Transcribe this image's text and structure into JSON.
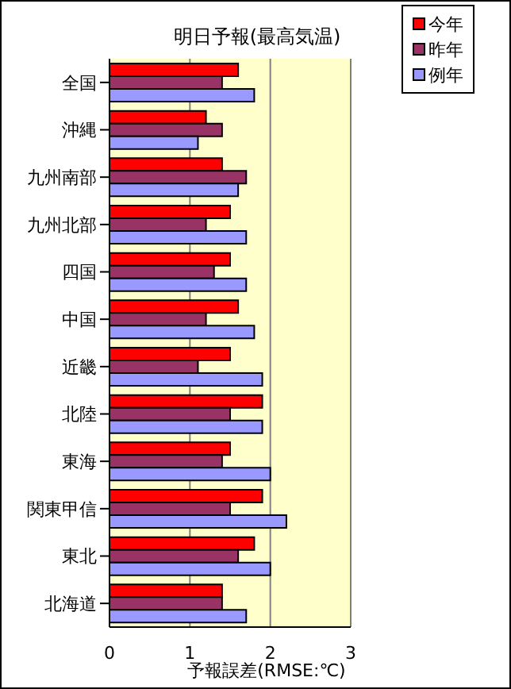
{
  "chart_data": {
    "type": "bar",
    "orientation": "horizontal",
    "title": "明日予報(最高気温)",
    "xlabel": "予報誤差(RMSE:℃)",
    "categories": [
      "全国",
      "沖縄",
      "九州南部",
      "九州北部",
      "四国",
      "中国",
      "近畿",
      "北陸",
      "東海",
      "関東甲信",
      "東北",
      "北海道"
    ],
    "series": [
      {
        "name": "今年",
        "color": "#ff0000",
        "values": [
          1.6,
          1.2,
          1.4,
          1.5,
          1.5,
          1.6,
          1.5,
          1.9,
          1.5,
          1.9,
          1.8,
          1.4
        ]
      },
      {
        "name": "昨年",
        "color": "#993366",
        "values": [
          1.4,
          1.4,
          1.7,
          1.2,
          1.3,
          1.2,
          1.1,
          1.5,
          1.4,
          1.5,
          1.6,
          1.4
        ]
      },
      {
        "name": "例年",
        "color": "#9999ff",
        "values": [
          1.8,
          1.1,
          1.6,
          1.7,
          1.7,
          1.8,
          1.9,
          1.9,
          2.0,
          2.2,
          2.0,
          1.7
        ]
      }
    ],
    "xlim": [
      0,
      3
    ],
    "xticks": [
      0,
      1,
      2,
      3
    ],
    "grid": "x",
    "legend": "top right"
  }
}
